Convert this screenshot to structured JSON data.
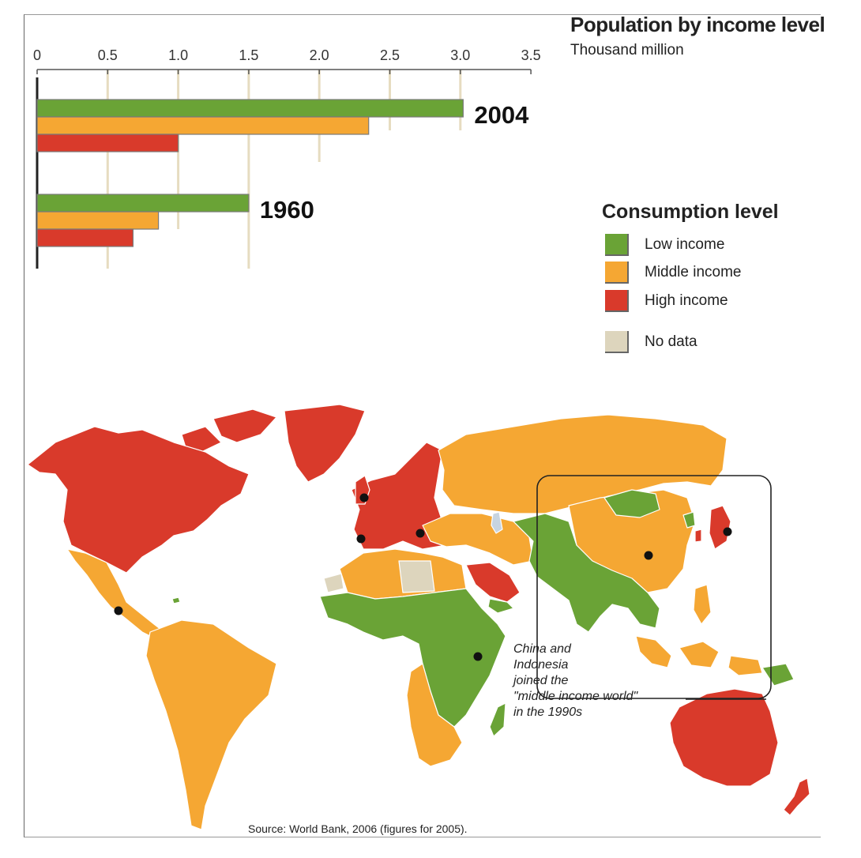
{
  "chart_data": {
    "type": "bar",
    "orientation": "horizontal",
    "title": "Population by income level",
    "subtitle": "Thousand million",
    "xlim": [
      0,
      3.5
    ],
    "xticks": [
      0,
      0.5,
      1.0,
      1.5,
      2.0,
      2.5,
      3.0,
      3.5
    ],
    "xtick_labels": [
      "0",
      "0.5",
      "1.0",
      "1.5",
      "2.0",
      "2.5",
      "3.0",
      "3.5"
    ],
    "grid": true,
    "groups": [
      {
        "label": "2004",
        "values": [
          3.02,
          2.35,
          1.0
        ]
      },
      {
        "label": "1960",
        "values": [
          1.5,
          0.86,
          0.68
        ]
      }
    ],
    "series": [
      {
        "name": "Low income",
        "color": "#6aa336"
      },
      {
        "name": "Middle income",
        "color": "#f5a733"
      },
      {
        "name": "High income",
        "color": "#d93a2b"
      }
    ]
  },
  "legend": {
    "title": "Consumption level",
    "items": [
      {
        "label": "Low income",
        "color": "#6aa336"
      },
      {
        "label": "Middle income",
        "color": "#f5a733"
      },
      {
        "label": "High income",
        "color": "#d93a2b"
      },
      {
        "label": "No data",
        "color": "#ddd5bd"
      }
    ]
  },
  "map": {
    "annotation_lines": [
      "China and",
      "Indonesia",
      "joined the",
      "\"middle income world\"",
      "in the 1990s"
    ],
    "source": "Source: World Bank, 2006 (figures for 2005)."
  }
}
